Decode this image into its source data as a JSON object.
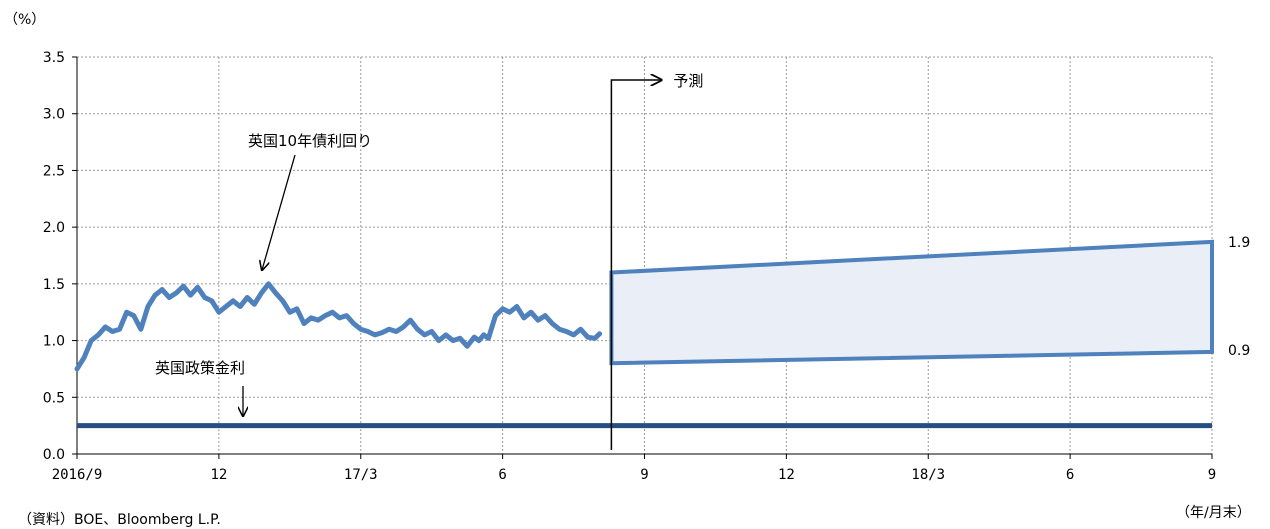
{
  "chart_data": {
    "type": "line",
    "unit_label": "（%）",
    "x_unit_label": "（年/月末）",
    "source": "（資料）BOE、Bloomberg L.P.",
    "ylim": [
      0,
      3.5
    ],
    "yticks": [
      "0.0",
      "0.5",
      "1.0",
      "1.5",
      "2.0",
      "2.5",
      "3.0",
      "3.5"
    ],
    "xlim": [
      0,
      24
    ],
    "xticks": [
      {
        "pos": 0,
        "label": "2016/9"
      },
      {
        "pos": 3,
        "label": "12"
      },
      {
        "pos": 6,
        "label": "17/3"
      },
      {
        "pos": 9,
        "label": "6"
      },
      {
        "pos": 12,
        "label": "9"
      },
      {
        "pos": 15,
        "label": "12"
      },
      {
        "pos": 18,
        "label": "18/3"
      },
      {
        "pos": 21,
        "label": "6"
      },
      {
        "pos": 24,
        "label": "9"
      }
    ],
    "grid": true,
    "forecast_start": 11.3,
    "forecast_label": "予測",
    "series": [
      {
        "name": "英国10年債利回り",
        "color": "#4f81bd",
        "x": [
          0,
          0.15,
          0.3,
          0.45,
          0.6,
          0.75,
          0.9,
          1.05,
          1.2,
          1.35,
          1.5,
          1.65,
          1.8,
          1.95,
          2.1,
          2.25,
          2.4,
          2.55,
          2.7,
          2.85,
          3.0,
          3.15,
          3.3,
          3.45,
          3.6,
          3.75,
          3.9,
          4.05,
          4.2,
          4.35,
          4.5,
          4.65,
          4.8,
          4.95,
          5.1,
          5.25,
          5.4,
          5.55,
          5.7,
          5.85,
          6.0,
          6.15,
          6.3,
          6.45,
          6.6,
          6.75,
          6.9,
          7.05,
          7.2,
          7.35,
          7.5,
          7.65,
          7.8,
          7.95,
          8.1,
          8.25,
          8.4,
          8.5,
          8.6,
          8.7,
          8.85,
          9.0,
          9.15,
          9.3,
          9.45,
          9.6,
          9.75,
          9.9,
          10.05,
          10.2,
          10.35,
          10.5,
          10.65,
          10.8,
          10.95,
          11.05
        ],
        "values": [
          0.75,
          0.85,
          1.0,
          1.05,
          1.12,
          1.08,
          1.1,
          1.25,
          1.22,
          1.1,
          1.3,
          1.4,
          1.45,
          1.38,
          1.42,
          1.48,
          1.4,
          1.47,
          1.38,
          1.35,
          1.25,
          1.3,
          1.35,
          1.3,
          1.38,
          1.32,
          1.42,
          1.5,
          1.42,
          1.35,
          1.25,
          1.28,
          1.15,
          1.2,
          1.18,
          1.22,
          1.25,
          1.2,
          1.22,
          1.15,
          1.1,
          1.08,
          1.05,
          1.07,
          1.1,
          1.08,
          1.12,
          1.18,
          1.1,
          1.05,
          1.08,
          1.0,
          1.05,
          1.0,
          1.02,
          0.95,
          1.03,
          1.0,
          1.05,
          1.02,
          1.22,
          1.28,
          1.25,
          1.3,
          1.2,
          1.25,
          1.18,
          1.22,
          1.15,
          1.1,
          1.08,
          1.05,
          1.1,
          1.03,
          1.02,
          1.06
        ]
      },
      {
        "name": "英国政策金利",
        "color": "#254f81",
        "x": [
          0,
          24
        ],
        "values": [
          0.25,
          0.25
        ]
      }
    ],
    "forecast_band": {
      "color": "#4f81bd",
      "fill": "#e9eef7",
      "x": [
        11.3,
        24
      ],
      "upper": [
        1.6,
        1.87
      ],
      "lower": [
        0.8,
        0.9
      ],
      "upper_label": "1.9",
      "lower_label": "0.9"
    }
  }
}
